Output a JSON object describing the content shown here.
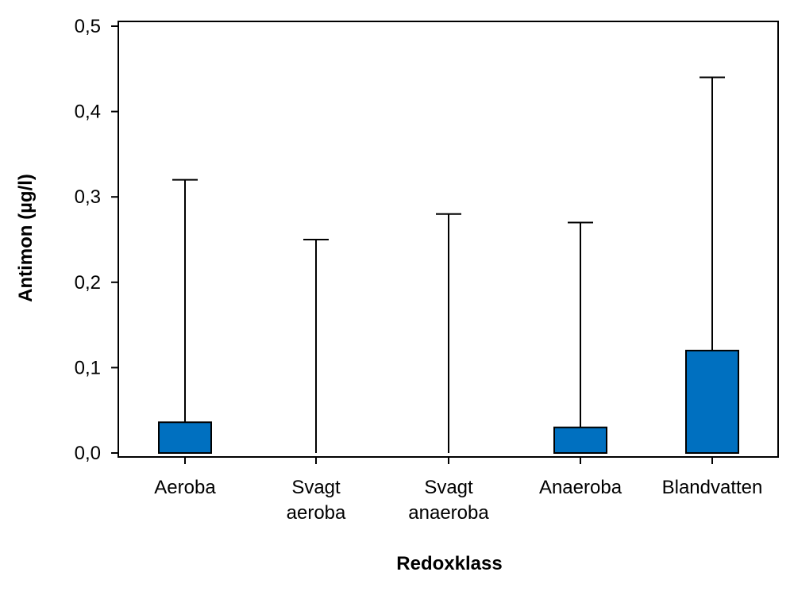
{
  "chart_data": {
    "type": "bar",
    "title": "",
    "xlabel": "Redoxklass",
    "ylabel": "Antimon (µg/l)",
    "ylim": [
      0,
      0.5
    ],
    "yticks": [
      0.0,
      0.1,
      0.2,
      0.3,
      0.4,
      0.5
    ],
    "ytick_labels": [
      "0,0",
      "0,1",
      "0,2",
      "0,3",
      "0,4",
      "0,5"
    ],
    "grid": false,
    "categories": [
      [
        "Aeroba"
      ],
      [
        "Svagt",
        "aeroba"
      ],
      [
        "Svagt",
        "anaeroba"
      ],
      [
        "Anaeroba"
      ],
      [
        "Blandvatten"
      ]
    ],
    "series": [
      {
        "name": "Antimon",
        "values": [
          0.036,
          0.0,
          0.0,
          0.03,
          0.12
        ],
        "whisker_max": [
          0.32,
          0.25,
          0.28,
          0.27,
          0.44
        ]
      }
    ],
    "colors": {
      "bar": "#0070C0",
      "stroke": "#000000"
    }
  }
}
